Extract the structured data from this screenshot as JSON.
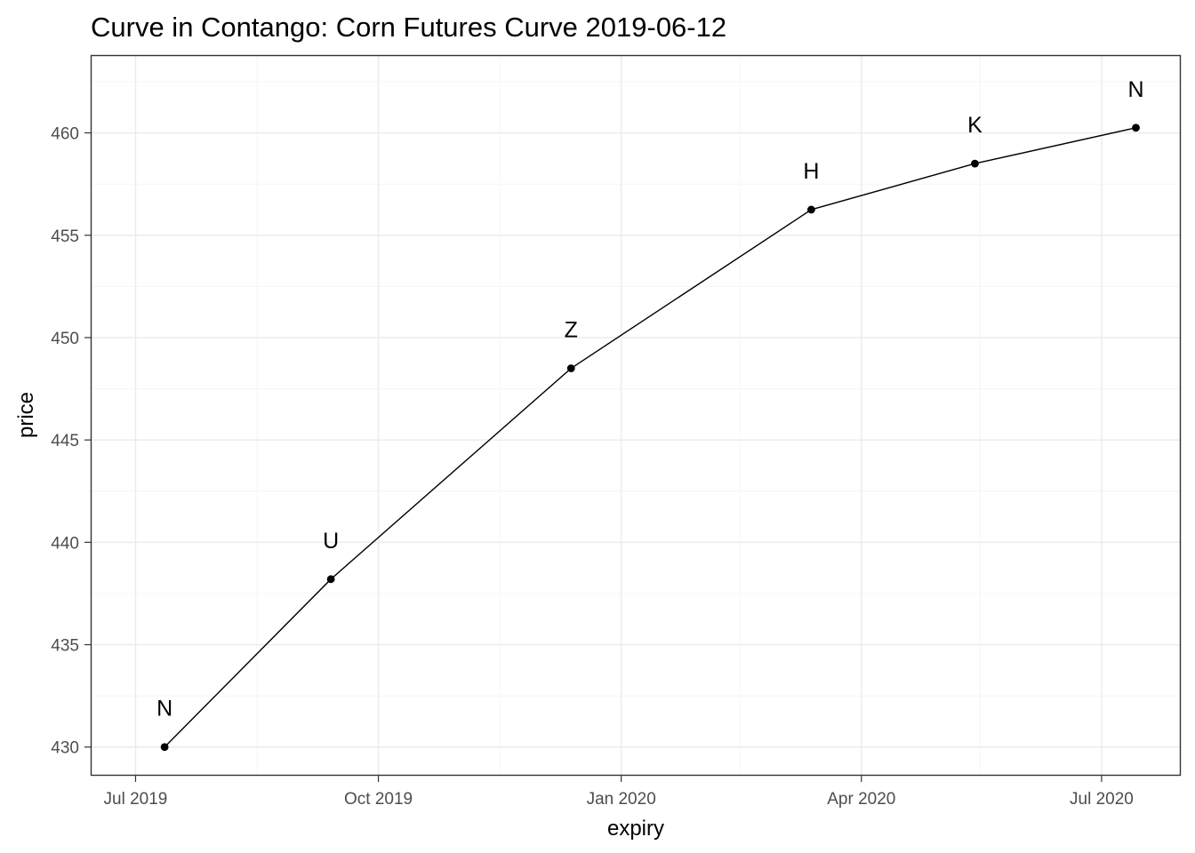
{
  "chart_data": {
    "type": "line",
    "title": "Curve in Contango: Corn Futures Curve 2019-06-12",
    "xlabel": "expiry",
    "ylabel": "price",
    "xlim": [
      "2019-06-14",
      "2020-07-31"
    ],
    "ylim": [
      428.6,
      463.8
    ],
    "x_ticks": [
      {
        "date": "2019-07-01",
        "label": "Jul 2019"
      },
      {
        "date": "2019-10-01",
        "label": "Oct 2019"
      },
      {
        "date": "2020-01-01",
        "label": "Jan 2020"
      },
      {
        "date": "2020-04-01",
        "label": "Apr 2020"
      },
      {
        "date": "2020-07-01",
        "label": "Jul 2020"
      }
    ],
    "x_minor_ticks": [
      "2019-08-16",
      "2019-11-16",
      "2020-02-15",
      "2020-05-16"
    ],
    "y_ticks": [
      430,
      435,
      440,
      445,
      450,
      455,
      460
    ],
    "y_minor_ticks": [
      432.5,
      437.5,
      442.5,
      447.5,
      452.5,
      457.5,
      462.5
    ],
    "grid": true,
    "points": [
      {
        "x": "2019-07-12",
        "y": 430.0,
        "label": "N"
      },
      {
        "x": "2019-09-13",
        "y": 438.2,
        "label": "U"
      },
      {
        "x": "2019-12-13",
        "y": 448.5,
        "label": "Z"
      },
      {
        "x": "2020-03-13",
        "y": 456.25,
        "label": "H"
      },
      {
        "x": "2020-05-14",
        "y": 458.5,
        "label": "K"
      },
      {
        "x": "2020-07-14",
        "y": 460.25,
        "label": "N"
      }
    ]
  }
}
